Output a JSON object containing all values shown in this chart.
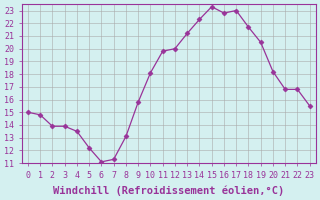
{
  "x": [
    0,
    1,
    2,
    3,
    4,
    5,
    6,
    7,
    8,
    9,
    10,
    11,
    12,
    13,
    14,
    15,
    16,
    17,
    18,
    19,
    20,
    21,
    22,
    23
  ],
  "y": [
    15.0,
    14.8,
    13.9,
    13.9,
    13.5,
    12.2,
    11.1,
    11.3,
    13.1,
    15.8,
    18.1,
    19.8,
    20.0,
    21.2,
    22.3,
    23.3,
    22.8,
    23.0,
    21.7,
    20.5,
    18.2,
    16.8,
    16.8,
    15.5
  ],
  "line_color": "#993399",
  "marker": "D",
  "marker_size": 2.5,
  "bg_color": "#d4f0f0",
  "grid_color": "#aaaaaa",
  "xlabel": "Windchill (Refroidissement éolien,°C)",
  "xlabel_fontsize": 7.5,
  "ylim": [
    11,
    23.5
  ],
  "xlim": [
    -0.5,
    23.5
  ],
  "xtick_labels": [
    "0",
    "1",
    "2",
    "3",
    "4",
    "5",
    "6",
    "7",
    "8",
    "9",
    "10",
    "11",
    "12",
    "13",
    "14",
    "15",
    "16",
    "17",
    "18",
    "19",
    "20",
    "21",
    "22",
    "23"
  ],
  "tick_color": "#993399",
  "tick_fontsize": 6,
  "spine_color": "#993399"
}
